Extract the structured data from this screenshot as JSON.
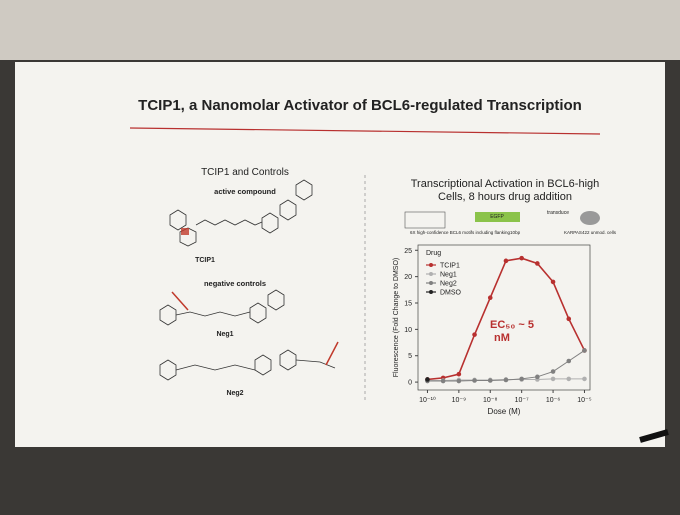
{
  "slide": {
    "title": "TCIP1, a Nanomolar Activator of BCL6-regulated Transcription",
    "left": {
      "heading": "TCIP1 and Controls",
      "active_label": "active compound",
      "tcip1": "TCIP1",
      "negative_label": "negative controls",
      "neg1": "Neg1",
      "neg2": "Neg2"
    },
    "construct": {
      "gene": "EGFP",
      "motifs": "6X high-confidence BCL6 motifs including flanking10bp",
      "transduce": "transduce",
      "cells": "KARPAS422 unmod. cells"
    }
  },
  "chart_data": {
    "type": "line",
    "title": "Transcriptional Activation in BCL6-high Cells, 8 hours drug addition",
    "x_label": "Dose (M)",
    "y_label": "Fluorescence (Fold Change to DMSO)",
    "legend_title": "Drug",
    "legend": "upper-left",
    "log_x": true,
    "x": [
      1e-10,
      3.16e-10,
      1e-09,
      3.16e-09,
      1e-08,
      3.16e-08,
      1e-07,
      3.16e-07,
      1e-06,
      3.16e-06,
      1e-05
    ],
    "series": [
      {
        "name": "TCIP1",
        "color": "#b8302f",
        "values": [
          0.5,
          0.8,
          1.5,
          9,
          16,
          23,
          23.5,
          22.5,
          19,
          12,
          6
        ]
      },
      {
        "name": "Neg1",
        "color": "#b0b0b0",
        "values": [
          0.3,
          0.3,
          0.4,
          0.4,
          0.4,
          0.5,
          0.5,
          0.5,
          0.6,
          0.6,
          0.6
        ]
      },
      {
        "name": "Neg2",
        "color": "#808080",
        "values": [
          0.2,
          0.2,
          0.2,
          0.3,
          0.3,
          0.4,
          0.6,
          1,
          2,
          4,
          6
        ]
      },
      {
        "name": "DMSO",
        "color": "#222222",
        "values": [
          0.5,
          null,
          null,
          null,
          null,
          null,
          null,
          null,
          null,
          null,
          null
        ]
      }
    ],
    "annotation": [
      "EC₅₀ ~ 5",
      "nM"
    ],
    "xlim": [
      5e-11,
      1.5e-05
    ],
    "xticks": [
      {
        "value": 1e-10,
        "label": "10⁻¹⁰"
      },
      {
        "value": 1e-09,
        "label": "10⁻⁹"
      },
      {
        "value": 1e-08,
        "label": "10⁻⁸"
      },
      {
        "value": 1e-07,
        "label": "10⁻⁷"
      },
      {
        "value": 1e-06,
        "label": "10⁻⁶"
      },
      {
        "value": 1e-05,
        "label": "10⁻⁵"
      }
    ],
    "ylim": [
      -1.5,
      26
    ],
    "yticks": [
      0,
      5,
      10,
      15,
      20,
      25
    ]
  }
}
